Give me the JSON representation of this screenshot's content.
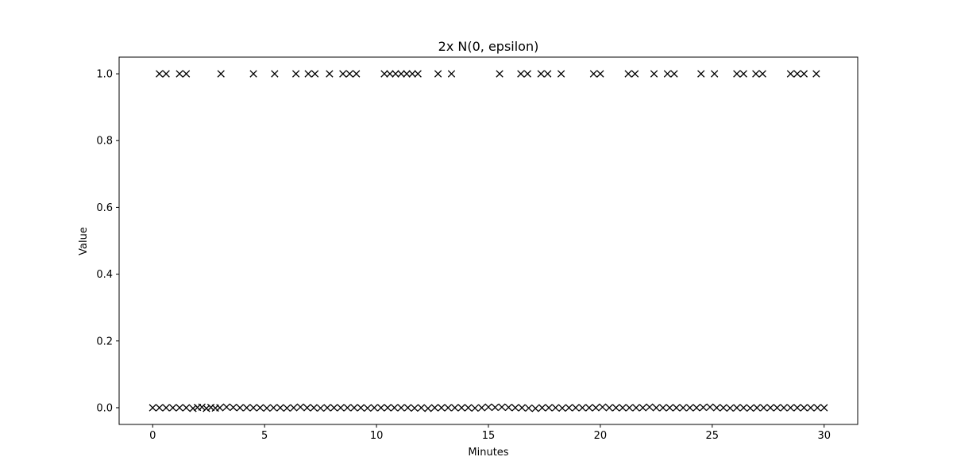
{
  "chart_data": {
    "type": "scatter",
    "title": "2x N(0, epsilon)",
    "xlabel": "Minutes",
    "ylabel": "Value",
    "xlim": [
      -1.5,
      31.5
    ],
    "ylim": [
      -0.05,
      1.05
    ],
    "xticks": [
      0,
      5,
      10,
      15,
      20,
      25,
      30
    ],
    "yticks": [
      0.0,
      0.2,
      0.4,
      0.6,
      0.8,
      1.0
    ],
    "xtick_labels": [
      "0",
      "5",
      "10",
      "15",
      "20",
      "25",
      "30"
    ],
    "ytick_labels": [
      "0.0",
      "0.2",
      "0.4",
      "0.6",
      "0.8",
      "1.0"
    ],
    "marker": "x",
    "marker_color": "#000000",
    "grid": false,
    "legend": "none",
    "series": [
      {
        "points": [
          [
            0.3,
            1.0
          ],
          [
            0.6,
            1.0
          ],
          [
            1.2,
            1.0
          ],
          [
            1.5,
            1.0
          ],
          [
            3.05,
            1.0
          ],
          [
            4.5,
            1.0
          ],
          [
            5.45,
            1.0
          ],
          [
            6.4,
            1.0
          ],
          [
            6.95,
            1.0
          ],
          [
            7.25,
            1.0
          ],
          [
            7.9,
            1.0
          ],
          [
            8.5,
            1.0
          ],
          [
            8.8,
            1.0
          ],
          [
            9.1,
            1.0
          ],
          [
            10.35,
            1.0
          ],
          [
            10.6,
            1.0
          ],
          [
            10.85,
            1.0
          ],
          [
            11.1,
            1.0
          ],
          [
            11.35,
            1.0
          ],
          [
            11.6,
            1.0
          ],
          [
            11.85,
            1.0
          ],
          [
            12.75,
            1.0
          ],
          [
            13.35,
            1.0
          ],
          [
            15.5,
            1.0
          ],
          [
            16.45,
            1.0
          ],
          [
            16.75,
            1.0
          ],
          [
            17.35,
            1.0
          ],
          [
            17.65,
            1.0
          ],
          [
            18.25,
            1.0
          ],
          [
            19.7,
            1.0
          ],
          [
            20.0,
            1.0
          ],
          [
            21.25,
            1.0
          ],
          [
            21.55,
            1.0
          ],
          [
            22.4,
            1.0
          ],
          [
            23.0,
            1.0
          ],
          [
            23.3,
            1.0
          ],
          [
            24.5,
            1.0
          ],
          [
            25.1,
            1.0
          ],
          [
            26.1,
            1.0
          ],
          [
            26.4,
            1.0
          ],
          [
            26.95,
            1.0
          ],
          [
            27.25,
            1.0
          ],
          [
            28.5,
            1.0
          ],
          [
            28.8,
            1.0
          ],
          [
            29.1,
            1.0
          ],
          [
            29.65,
            1.0
          ],
          [
            0.0,
            0.0
          ],
          [
            0.3,
            0.0
          ],
          [
            0.6,
            0.0
          ],
          [
            0.9,
            0.0
          ],
          [
            1.2,
            0.0
          ],
          [
            1.5,
            0.0
          ],
          [
            1.8,
            -0.002
          ],
          [
            2.0,
            0.001
          ],
          [
            2.2,
            0.002
          ],
          [
            2.4,
            -0.002
          ],
          [
            2.6,
            0.001
          ],
          [
            2.8,
            -0.001
          ],
          [
            3.0,
            0.0
          ],
          [
            3.3,
            0.002
          ],
          [
            3.6,
            0.001
          ],
          [
            3.9,
            0.0
          ],
          [
            4.2,
            0.0
          ],
          [
            4.5,
            0.0
          ],
          [
            4.8,
            0.0
          ],
          [
            5.1,
            -0.001
          ],
          [
            5.4,
            0.0
          ],
          [
            5.7,
            0.0
          ],
          [
            6.0,
            -0.001
          ],
          [
            6.3,
            0.0
          ],
          [
            6.6,
            0.002
          ],
          [
            6.9,
            0.0
          ],
          [
            7.2,
            0.0
          ],
          [
            7.5,
            -0.001
          ],
          [
            7.8,
            0.0
          ],
          [
            8.1,
            0.0
          ],
          [
            8.4,
            0.0
          ],
          [
            8.7,
            0.0
          ],
          [
            9.0,
            0.0
          ],
          [
            9.3,
            0.0
          ],
          [
            9.6,
            -0.001
          ],
          [
            9.9,
            0.0
          ],
          [
            10.2,
            0.0
          ],
          [
            10.5,
            0.0
          ],
          [
            10.8,
            0.0
          ],
          [
            11.1,
            0.0
          ],
          [
            11.4,
            0.0
          ],
          [
            11.7,
            -0.001
          ],
          [
            12.0,
            0.0
          ],
          [
            12.3,
            -0.002
          ],
          [
            12.6,
            0.0
          ],
          [
            12.9,
            0.0
          ],
          [
            13.2,
            0.0
          ],
          [
            13.5,
            0.0
          ],
          [
            13.8,
            0.0
          ],
          [
            14.1,
            0.0
          ],
          [
            14.4,
            -0.001
          ],
          [
            14.7,
            0.0
          ],
          [
            15.0,
            0.002
          ],
          [
            15.3,
            0.001
          ],
          [
            15.6,
            0.002
          ],
          [
            15.9,
            0.001
          ],
          [
            16.2,
            0.0
          ],
          [
            16.5,
            0.0
          ],
          [
            16.8,
            -0.001
          ],
          [
            17.1,
            -0.002
          ],
          [
            17.4,
            0.0
          ],
          [
            17.7,
            0.0
          ],
          [
            18.0,
            0.0
          ],
          [
            18.3,
            -0.001
          ],
          [
            18.6,
            0.0
          ],
          [
            18.9,
            0.0
          ],
          [
            19.2,
            0.0
          ],
          [
            19.5,
            0.0
          ],
          [
            19.8,
            0.0
          ],
          [
            20.1,
            0.002
          ],
          [
            20.4,
            0.0
          ],
          [
            20.7,
            0.0
          ],
          [
            21.0,
            0.0
          ],
          [
            21.3,
            0.0
          ],
          [
            21.6,
            0.0
          ],
          [
            21.9,
            0.0
          ],
          [
            22.2,
            0.002
          ],
          [
            22.5,
            0.0
          ],
          [
            22.8,
            0.0
          ],
          [
            23.1,
            0.0
          ],
          [
            23.4,
            0.0
          ],
          [
            23.7,
            0.0
          ],
          [
            24.0,
            0.0
          ],
          [
            24.3,
            0.0
          ],
          [
            24.6,
            0.001
          ],
          [
            24.9,
            0.002
          ],
          [
            25.2,
            0.0
          ],
          [
            25.5,
            0.0
          ],
          [
            25.8,
            -0.001
          ],
          [
            26.1,
            0.0
          ],
          [
            26.4,
            0.0
          ],
          [
            26.7,
            -0.001
          ],
          [
            27.0,
            0.0
          ],
          [
            27.3,
            0.0
          ],
          [
            27.6,
            0.0
          ],
          [
            27.9,
            0.0
          ],
          [
            28.2,
            0.0
          ],
          [
            28.5,
            0.0
          ],
          [
            28.8,
            0.0
          ],
          [
            29.1,
            0.0
          ],
          [
            29.4,
            0.0
          ],
          [
            29.7,
            0.0
          ],
          [
            30.0,
            0.0
          ]
        ]
      }
    ]
  }
}
